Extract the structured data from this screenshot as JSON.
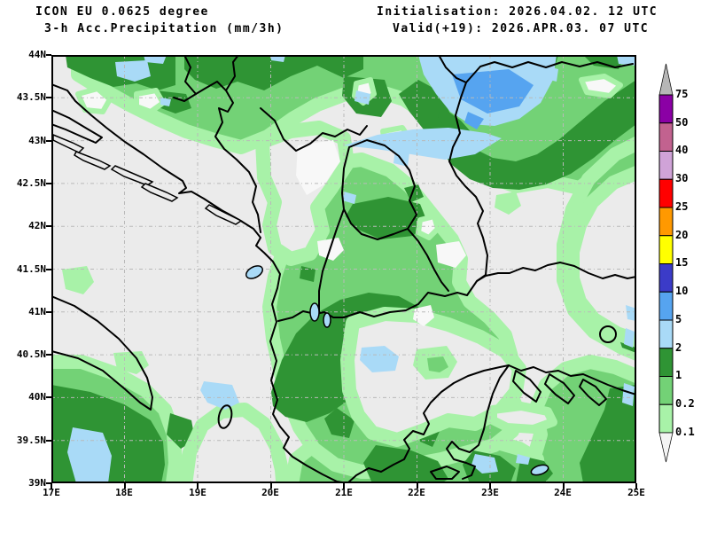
{
  "header": {
    "model_line": "ICON EU 0.0625 degree",
    "product_line": "3-h Acc.Precipitation (mm/3h)",
    "init_line": "Initialisation: 2026.04.02. 12 UTC",
    "valid_line": "Valid(+19): 2026.APR.03. 07 UTC"
  },
  "axes": {
    "lat_labels": [
      "44N",
      "43.5N",
      "43N",
      "42.5N",
      "42N",
      "41.5N",
      "41N",
      "40.5N",
      "40N",
      "39.5N",
      "39N"
    ],
    "lon_labels": [
      "17E",
      "18E",
      "19E",
      "20E",
      "21E",
      "22E",
      "23E",
      "24E",
      "25E"
    ]
  },
  "colorbar": {
    "labels": [
      "75",
      "50",
      "40",
      "30",
      "25",
      "20",
      "15",
      "10",
      "5",
      "2",
      "1",
      "0.2",
      "0.1"
    ],
    "colors": [
      "#8b00a5",
      "#c2628f",
      "#d0a3d8",
      "#ff0000",
      "#ff9900",
      "#ffff00",
      "#3b3bc8",
      "#56a4f0",
      "#a9daf7",
      "#2f9434",
      "#73d276",
      "#a8f2a8"
    ],
    "over_color": "#b6b6b6",
    "under_color": "#f4f4f4"
  },
  "palette": {
    "dry": "#ebebeb",
    "white": "#f8f8f8",
    "glight": "#a8f2a8",
    "gmid": "#73d276",
    "gdark": "#2f9434",
    "blight": "#a9daf7",
    "bmid": "#56a4f0",
    "bdark": "#3b3bc8",
    "grid": "#b9b9b9",
    "frame": "#000000"
  },
  "chart_data": {
    "type": "filled-contour-map",
    "variable": "3-h accumulated precipitation",
    "units": "mm/3h",
    "model": "ICON EU 0.0625 degree",
    "initialisation": "2026.04.02. 12 UTC",
    "valid": "2026.APR.03. 07 UTC",
    "lead_hours": 19,
    "lon_range_deg_east": [
      17,
      25
    ],
    "lat_range_deg_north": [
      39,
      44
    ],
    "grid_spacing": {
      "lon_deg": 1,
      "lat_deg": 0.5
    },
    "contour_levels_mm": [
      0.1,
      0.2,
      1,
      2,
      5,
      10,
      15,
      20,
      25,
      30,
      40,
      50,
      75
    ],
    "level_colors_low_to_high": [
      "#a8f2a8",
      "#73d276",
      "#2f9434",
      "#a9daf7",
      "#56a4f0",
      "#3b3bc8",
      "#ffff00",
      "#ff9900",
      "#ff0000",
      "#d0a3d8",
      "#c2628f",
      "#8b00a5"
    ],
    "max_band_on_map_mm": "5-10",
    "notes": "Widespread 0.1-2 mm over the Balkans; 2-5 mm (light blue) over NE Serbia/SW Romania with a 5-10 mm core near 22.3E,43.6N; dry (grey) along Adriatic coast, E Bulgaria and N Aegean."
  }
}
